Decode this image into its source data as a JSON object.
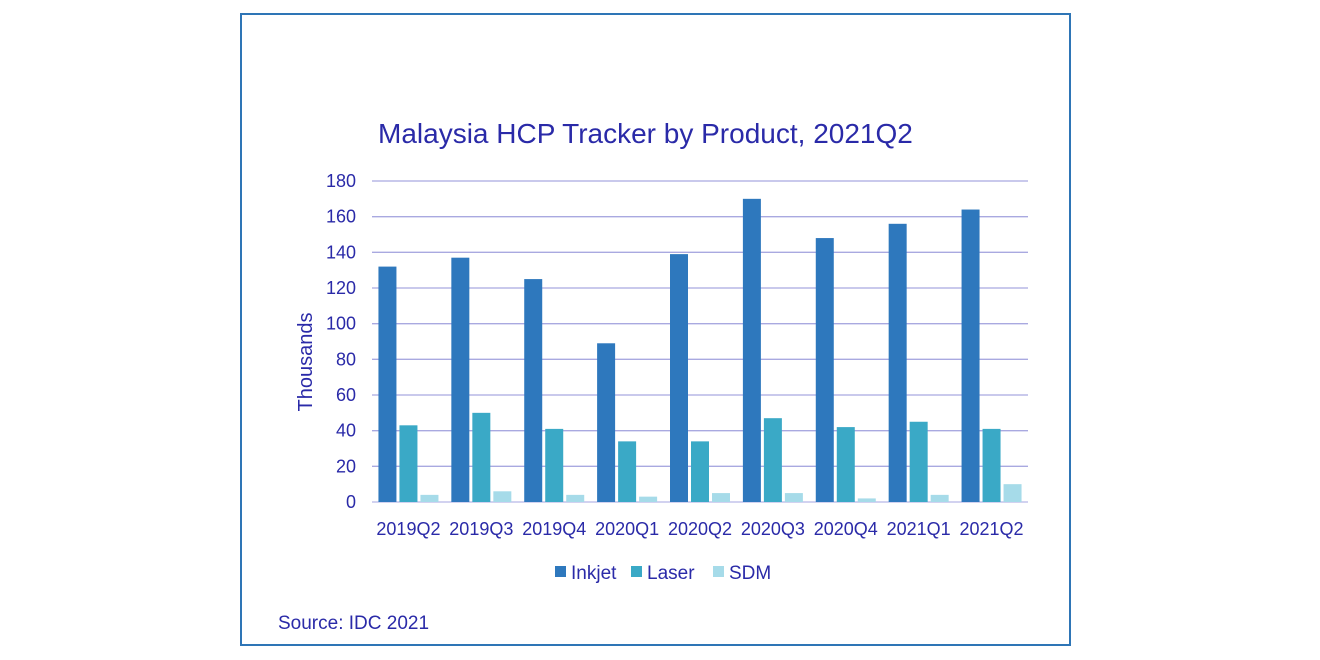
{
  "source": "Source: IDC 2021",
  "chart_data": {
    "type": "bar",
    "title": "Malaysia HCP Tracker by Product, 2021Q2",
    "ylabel": "Thousands",
    "xlabel": "",
    "ylim": [
      0,
      180
    ],
    "yticks": [
      0,
      20,
      40,
      60,
      80,
      100,
      120,
      140,
      160,
      180
    ],
    "grid": true,
    "legend_position": "bottom",
    "categories": [
      "2019Q2",
      "2019Q3",
      "2019Q4",
      "2020Q1",
      "2020Q2",
      "2020Q3",
      "2020Q4",
      "2021Q1",
      "2021Q2"
    ],
    "series": [
      {
        "name": "Inkjet",
        "color": "#2e78bd",
        "values": [
          132,
          137,
          125,
          89,
          139,
          170,
          148,
          156,
          164
        ]
      },
      {
        "name": "Laser",
        "color": "#3aa9c6",
        "values": [
          43,
          50,
          41,
          34,
          34,
          47,
          42,
          45,
          41
        ]
      },
      {
        "name": "SDM",
        "color": "#a6dbe9",
        "values": [
          4,
          6,
          4,
          3,
          5,
          5,
          2,
          4,
          10
        ]
      }
    ]
  }
}
